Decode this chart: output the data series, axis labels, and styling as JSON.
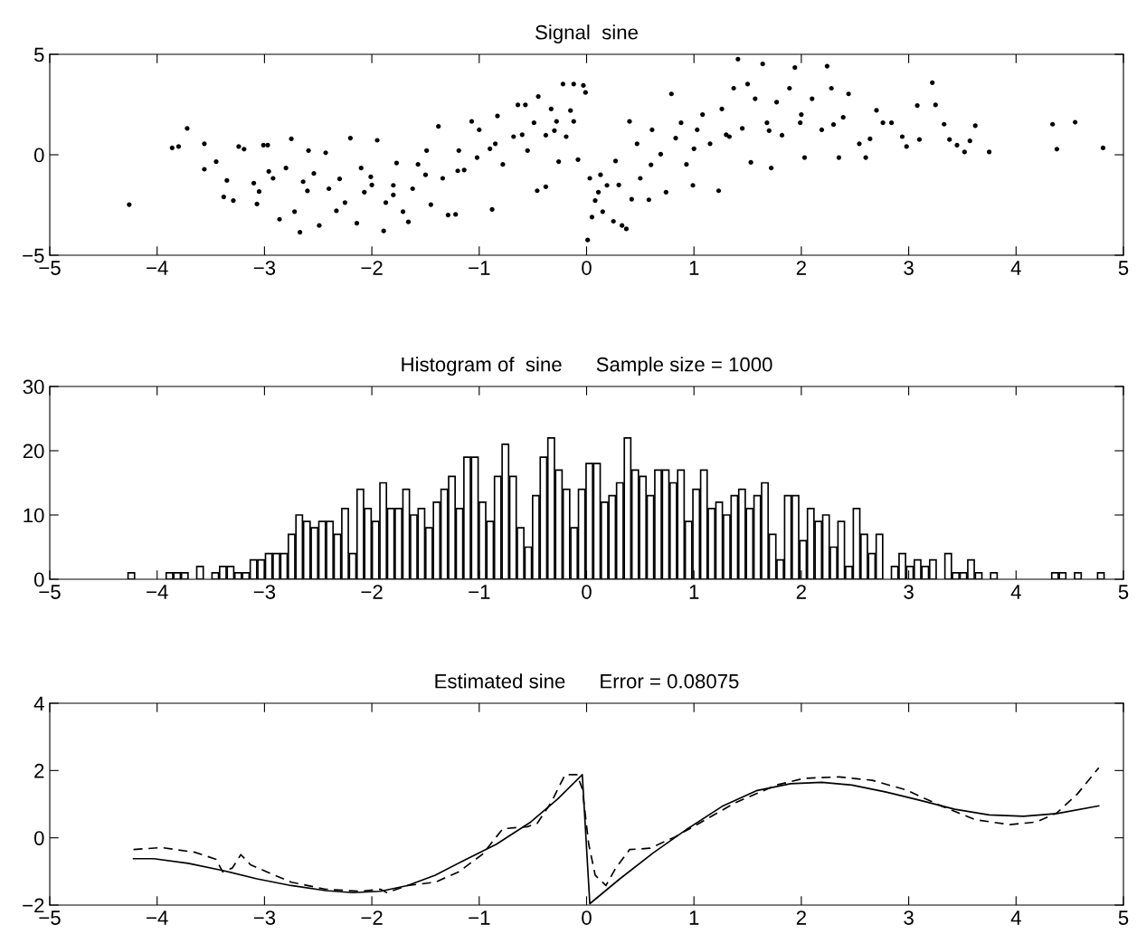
{
  "chart_data": [
    {
      "type": "scatter",
      "title": "Signal  sine",
      "color": "#000000",
      "marker": "circle",
      "x": [
        -4.26,
        -3.86,
        -3.8,
        -3.72,
        -3.56,
        -3.56,
        -3.45,
        -3.38,
        -3.35,
        -3.29,
        -3.24,
        -3.19,
        -3.1,
        -3.07,
        -3.05,
        -3.01,
        -2.97,
        -2.96,
        -2.92,
        -2.86,
        -2.8,
        -2.75,
        -2.72,
        -2.67,
        -2.64,
        -2.59,
        -2.54,
        -2.49,
        -2.43,
        -2.4,
        -2.33,
        -2.25,
        -2.2,
        -2.14,
        -2.1,
        -2.07,
        -2.01,
        -1.95,
        -1.89,
        -1.87,
        -1.8,
        -1.77,
        -1.71,
        -1.66,
        -1.62,
        -1.57,
        -1.49,
        -1.45,
        -1.38,
        -1.34,
        -1.29,
        -1.22,
        -1.19,
        -1.14,
        -1.07,
        -1.02,
        -1.0,
        -0.88,
        -0.85,
        -0.83,
        -0.78,
        -0.68,
        -0.64,
        -0.57,
        -0.55,
        -0.49,
        -0.46,
        -0.45,
        -0.38,
        -0.38,
        -0.33,
        -0.28,
        -0.26,
        -0.22,
        -0.19,
        -0.12,
        -0.12,
        -0.08,
        -0.03,
        -0.01,
        0.01,
        0.03,
        0.05,
        0.08,
        0.11,
        0.13,
        0.15,
        0.19,
        0.25,
        0.27,
        0.33,
        0.37,
        0.4,
        0.42,
        0.47,
        0.5,
        0.58,
        0.61,
        0.69,
        0.74,
        0.79,
        0.83,
        0.88,
        0.93,
        0.99,
        1.03,
        1.08,
        1.15,
        1.23,
        1.26,
        1.33,
        1.37,
        1.41,
        1.45,
        1.5,
        1.53,
        1.57,
        1.64,
        1.68,
        1.72,
        1.77,
        1.82,
        1.89,
        1.94,
        1.99,
        2.03,
        2.1,
        2.19,
        2.24,
        2.28,
        2.35,
        2.39,
        2.44,
        2.54,
        2.6,
        2.64,
        2.7,
        2.76,
        2.84,
        2.94,
        2.98,
        3.08,
        3.1,
        3.22,
        3.25,
        3.33,
        3.38,
        3.45,
        3.52,
        3.57,
        3.62,
        3.75,
        4.34,
        4.38,
        4.55,
        4.81,
        -2.0,
        -1.8,
        -1.5,
        -1.2,
        -0.9,
        -0.6,
        -0.3,
        -0.15,
        0.3,
        0.6,
        1.0,
        1.3,
        1.7,
        2.0,
        2.3,
        -2.3,
        -2.6
      ],
      "values": [
        -2.48,
        0.34,
        0.41,
        1.31,
        0.55,
        -0.72,
        -0.34,
        -2.1,
        -1.28,
        -2.28,
        0.41,
        0.28,
        -1.41,
        -2.45,
        -1.83,
        0.48,
        0.48,
        -0.83,
        -1.17,
        -3.21,
        -0.66,
        0.79,
        -2.83,
        -3.86,
        -1.34,
        0.21,
        -0.93,
        -3.52,
        0.1,
        -1.69,
        -2.79,
        -2.38,
        0.83,
        -3.41,
        -0.66,
        -1.86,
        -1.1,
        0.72,
        -3.79,
        -2.38,
        -1.52,
        -0.41,
        -2.83,
        -3.34,
        -1.69,
        -0.48,
        0.21,
        -2.48,
        1.41,
        -1.17,
        -3.0,
        -2.97,
        0.21,
        -0.76,
        1.66,
        -0.14,
        1.24,
        -2.72,
        0.55,
        1.93,
        -0.48,
        0.9,
        2.48,
        2.48,
        0.21,
        1.59,
        -1.79,
        2.9,
        -1.59,
        0.97,
        2.28,
        1.66,
        -0.34,
        3.52,
        0.9,
        3.52,
        1.66,
        -0.24,
        3.45,
        3.1,
        -4.24,
        -1.17,
        -3.1,
        -2.28,
        -1.86,
        -1.0,
        -2.83,
        -1.52,
        -3.31,
        -0.31,
        -3.52,
        -3.69,
        1.66,
        -2.21,
        0.55,
        -1.17,
        -2.24,
        1.24,
        0.03,
        -1.86,
        3.03,
        0.83,
        1.59,
        -0.48,
        -1.52,
        1.24,
        2.0,
        0.55,
        -1.79,
        2.28,
        0.9,
        3.31,
        4.76,
        1.31,
        3.52,
        -0.38,
        2.79,
        4.52,
        1.59,
        -0.66,
        2.62,
        0.97,
        3.31,
        4.34,
        1.59,
        -0.14,
        2.79,
        1.24,
        4.41,
        3.31,
        -0.14,
        1.86,
        3.03,
        0.55,
        -0.14,
        0.79,
        2.21,
        1.59,
        1.59,
        0.9,
        0.41,
        2.45,
        0.76,
        3.59,
        2.48,
        1.52,
        0.76,
        0.48,
        0.14,
        0.69,
        1.45,
        0.14,
        1.52,
        0.28,
        1.62,
        0.34,
        -1.5,
        -2.0,
        -1.0,
        -0.8,
        0.3,
        1.0,
        1.2,
        2.2,
        -1.5,
        -0.5,
        0.3,
        1.0,
        1.2,
        2.0,
        1.5,
        -1.2,
        -1.8
      ],
      "xlim": [
        -5,
        5
      ],
      "ylim": [
        -5,
        5
      ],
      "xticks": [
        -5,
        -4,
        -3,
        -2,
        -1,
        0,
        1,
        2,
        3,
        4,
        5
      ],
      "yticks": [
        -5,
        0,
        5
      ]
    },
    {
      "type": "histogram",
      "title": "Histogram of  sine      Sample size = 1000",
      "color": "#ffffff",
      "bins": [
        -4.276,
        -4.205,
        -4.134,
        -4.063,
        -3.992,
        -3.921,
        -3.849,
        -3.778,
        -3.707,
        -3.636,
        -3.565,
        -3.494,
        -3.423,
        -3.352,
        -3.281,
        -3.21,
        -3.138,
        -3.067,
        -2.996,
        -2.925,
        -2.854,
        -2.783,
        -2.712,
        -2.641,
        -2.57,
        -2.499,
        -2.427,
        -2.356,
        -2.285,
        -2.214,
        -2.143,
        -2.072,
        -2.001,
        -1.93,
        -1.859,
        -1.788,
        -1.716,
        -1.645,
        -1.574,
        -1.503,
        -1.432,
        -1.361,
        -1.29,
        -1.219,
        -1.148,
        -1.077,
        -1.005,
        -0.934,
        -0.863,
        -0.792,
        -0.721,
        -0.65,
        -0.579,
        -0.508,
        -0.437,
        -0.366,
        -0.294,
        -0.223,
        -0.152,
        -0.081,
        -0.01,
        0.061,
        0.132,
        0.203,
        0.274,
        0.346,
        0.417,
        0.488,
        0.559,
        0.63,
        0.701,
        0.772,
        0.843,
        0.914,
        0.985,
        1.057,
        1.128,
        1.199,
        1.27,
        1.341,
        1.412,
        1.483,
        1.554,
        1.625,
        1.696,
        1.768,
        1.839,
        1.91,
        1.981,
        2.052,
        2.123,
        2.194,
        2.265,
        2.336,
        2.407,
        2.479,
        2.55,
        2.621,
        2.692,
        2.763,
        2.834,
        2.905,
        2.976,
        3.047,
        3.118,
        3.19,
        3.261,
        3.332,
        3.403,
        3.474,
        3.545,
        3.616,
        3.687,
        3.758,
        3.829,
        3.901,
        3.972,
        4.043,
        4.114,
        4.185,
        4.256,
        4.327,
        4.398,
        4.469,
        4.54,
        4.612,
        4.683,
        4.754,
        4.825
      ],
      "values": [
        1,
        0,
        0,
        0,
        0,
        1,
        1,
        1,
        0,
        2,
        0,
        1,
        2,
        2,
        1,
        1,
        3,
        3,
        4,
        4,
        4,
        7,
        10,
        9,
        8,
        9,
        9,
        7,
        11,
        4,
        14,
        11,
        9,
        15,
        11,
        11,
        14,
        10,
        11,
        8,
        12,
        14,
        16,
        11,
        19,
        19,
        12,
        9,
        16,
        21,
        16,
        8,
        5,
        13,
        19,
        22,
        17,
        14,
        8,
        14,
        18,
        18,
        12,
        13,
        15,
        22,
        17,
        16,
        13,
        17,
        17,
        15,
        17,
        9,
        14,
        17,
        11,
        12,
        10,
        13,
        14,
        11,
        13,
        15,
        7,
        3,
        13,
        13,
        6,
        11,
        9,
        10,
        5,
        9,
        2,
        11,
        7,
        4,
        7,
        0,
        2,
        4,
        2,
        3,
        2,
        3,
        0,
        4,
        1,
        1,
        3,
        1,
        0,
        1,
        0,
        0,
        0,
        0,
        0,
        0,
        0,
        1,
        1,
        0,
        1,
        0,
        0,
        1
      ],
      "xlim": [
        -5,
        5
      ],
      "ylim": [
        0,
        30
      ],
      "xticks": [
        -5,
        -4,
        -3,
        -2,
        -1,
        0,
        1,
        2,
        3,
        4,
        5
      ],
      "yticks": [
        0,
        10,
        20,
        30
      ]
    },
    {
      "type": "line",
      "title": "Estimated sine      Error = 0.08075",
      "series": [
        {
          "color": "#000000",
          "line_style": "solid",
          "x": [
            -4.22,
            -4.03,
            -3.71,
            -3.39,
            -3.07,
            -2.75,
            -2.43,
            -2.18,
            -1.92,
            -1.67,
            -1.41,
            -1.16,
            -0.84,
            -0.52,
            -0.27,
            -0.04,
            0.03,
            0.31,
            0.62,
            0.94,
            1.26,
            1.58,
            1.9,
            2.19,
            2.47,
            2.79,
            3.11,
            3.43,
            3.75,
            4.07,
            4.38,
            4.77
          ],
          "values": [
            -0.62,
            -0.62,
            -0.76,
            -0.97,
            -1.22,
            -1.42,
            -1.57,
            -1.63,
            -1.59,
            -1.42,
            -1.11,
            -0.7,
            -0.19,
            0.47,
            1.15,
            1.88,
            -1.96,
            -1.22,
            -0.45,
            0.27,
            0.93,
            1.4,
            1.61,
            1.65,
            1.57,
            1.36,
            1.11,
            0.85,
            0.68,
            0.64,
            0.72,
            0.95
          ]
        },
        {
          "color": "#000000",
          "line_style": "dashed",
          "x": [
            -4.22,
            -3.96,
            -3.65,
            -3.45,
            -3.39,
            -3.3,
            -3.22,
            -3.13,
            -2.98,
            -2.75,
            -2.43,
            -2.12,
            -1.92,
            -1.86,
            -1.67,
            -1.41,
            -1.19,
            -0.97,
            -0.78,
            -0.55,
            -0.46,
            -0.33,
            -0.2,
            -0.09,
            -0.04,
            0.02,
            0.08,
            0.18,
            0.27,
            0.4,
            0.59,
            0.82,
            1.07,
            1.39,
            1.77,
            2.03,
            2.35,
            2.66,
            2.98,
            3.3,
            3.62,
            3.94,
            4.19,
            4.38,
            4.57,
            4.77
          ],
          "values": [
            -0.35,
            -0.29,
            -0.43,
            -0.64,
            -1.01,
            -0.9,
            -0.5,
            -0.8,
            -1.01,
            -1.32,
            -1.53,
            -1.59,
            -1.53,
            -1.63,
            -1.42,
            -1.32,
            -1.01,
            -0.49,
            0.27,
            0.33,
            0.43,
            1.05,
            1.88,
            1.88,
            1.46,
            -0.19,
            -1.11,
            -1.42,
            -0.91,
            -0.35,
            -0.31,
            0.02,
            0.47,
            1.05,
            1.57,
            1.77,
            1.81,
            1.71,
            1.42,
            0.95,
            0.54,
            0.39,
            0.47,
            0.74,
            1.3,
            2.08
          ]
        }
      ],
      "xlim": [
        -5,
        5
      ],
      "ylim": [
        -2,
        4
      ],
      "xticks": [
        -5,
        -4,
        -3,
        -2,
        -1,
        0,
        1,
        2,
        3,
        4,
        5
      ],
      "yticks": [
        -2,
        0,
        2,
        4
      ]
    }
  ]
}
